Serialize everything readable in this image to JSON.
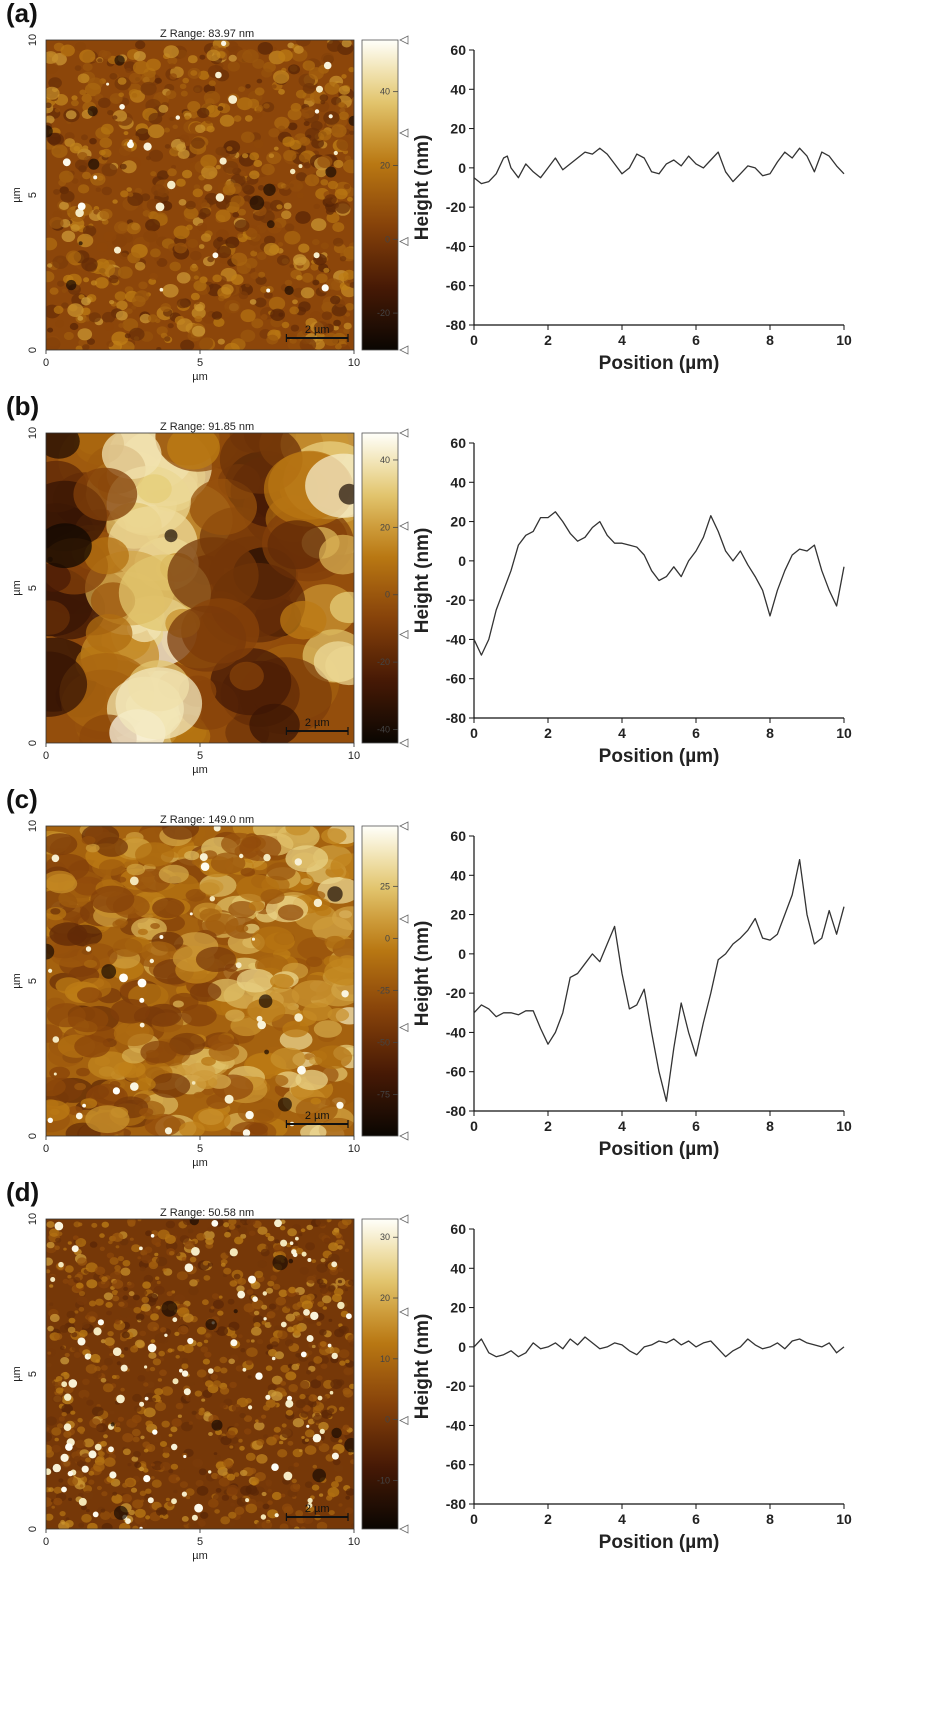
{
  "panels": [
    {
      "label": "(a)",
      "afm": {
        "z_range": "Z Range:  83.97 nm",
        "axis_unit": "µm",
        "x_ticks": [
          "0",
          "5",
          "10"
        ],
        "y_ticks": [
          "0",
          "5",
          "10"
        ],
        "scale_bar": "2 µm",
        "colorbar_ticks": [
          "40",
          "20",
          "0",
          "-20"
        ],
        "colorbar_values": [
          40,
          20,
          0,
          -20
        ],
        "colorbar_range": [
          -30,
          54
        ],
        "texture": "fine-grain"
      },
      "chart_data": {
        "type": "line",
        "xlabel": "Position (µm)",
        "ylabel": "Height (nm)",
        "xlim": [
          0,
          10
        ],
        "ylim": [
          -80,
          60
        ],
        "x_ticks": [
          0,
          2,
          4,
          6,
          8,
          10
        ],
        "y_ticks": [
          -80,
          -60,
          -40,
          -20,
          0,
          20,
          40,
          60
        ],
        "series": [
          {
            "x": [
              0,
              0.2,
              0.4,
              0.6,
              0.8,
              0.9,
              1.0,
              1.2,
              1.4,
              1.6,
              1.8,
              2.0,
              2.2,
              2.4,
              2.6,
              2.8,
              3.0,
              3.2,
              3.4,
              3.6,
              3.8,
              4.0,
              4.2,
              4.4,
              4.6,
              4.8,
              5.0,
              5.2,
              5.4,
              5.6,
              5.8,
              6.0,
              6.2,
              6.4,
              6.6,
              6.8,
              7.0,
              7.2,
              7.4,
              7.6,
              7.8,
              8.0,
              8.2,
              8.4,
              8.6,
              8.8,
              9.0,
              9.2,
              9.4,
              9.6,
              9.8,
              10.0
            ],
            "y": [
              -5,
              -8,
              -7,
              -3,
              5,
              6,
              0,
              -5,
              2,
              -2,
              -5,
              0,
              5,
              -1,
              2,
              5,
              8,
              7,
              10,
              7,
              2,
              -3,
              0,
              7,
              5,
              -2,
              -3,
              2,
              4,
              1,
              6,
              2,
              0,
              4,
              8,
              -2,
              -7,
              -3,
              1,
              0,
              -4,
              -3,
              3,
              8,
              5,
              10,
              6,
              -2,
              8,
              6,
              1,
              -3
            ]
          }
        ]
      }
    },
    {
      "label": "(b)",
      "afm": {
        "z_range": "Z Range:  91.85 nm",
        "axis_unit": "µm",
        "x_ticks": [
          "0",
          "5",
          "10"
        ],
        "y_ticks": [
          "0",
          "5",
          "10"
        ],
        "scale_bar": "2 µm",
        "colorbar_ticks": [
          "40",
          "20",
          "0",
          "-20",
          "-40"
        ],
        "colorbar_values": [
          40,
          20,
          0,
          -20,
          -40
        ],
        "colorbar_range": [
          -44,
          48
        ],
        "texture": "coarse-ridge"
      },
      "chart_data": {
        "type": "line",
        "xlabel": "Position (µm)",
        "ylabel": "Height (nm)",
        "xlim": [
          0,
          10
        ],
        "ylim": [
          -80,
          60
        ],
        "x_ticks": [
          0,
          2,
          4,
          6,
          8,
          10
        ],
        "y_ticks": [
          -80,
          -60,
          -40,
          -20,
          0,
          20,
          40,
          60
        ],
        "series": [
          {
            "x": [
              0,
              0.2,
              0.4,
              0.6,
              0.8,
              1.0,
              1.2,
              1.4,
              1.6,
              1.8,
              2.0,
              2.2,
              2.4,
              2.6,
              2.8,
              3.0,
              3.2,
              3.4,
              3.6,
              3.8,
              4.0,
              4.2,
              4.4,
              4.6,
              4.8,
              5.0,
              5.2,
              5.4,
              5.6,
              5.8,
              6.0,
              6.2,
              6.4,
              6.6,
              6.8,
              7.0,
              7.2,
              7.4,
              7.6,
              7.8,
              8.0,
              8.2,
              8.4,
              8.6,
              8.8,
              9.0,
              9.2,
              9.4,
              9.6,
              9.8,
              10.0
            ],
            "y": [
              -40,
              -48,
              -40,
              -25,
              -15,
              -5,
              8,
              13,
              15,
              22,
              22,
              25,
              20,
              14,
              10,
              12,
              17,
              20,
              13,
              9,
              9,
              8,
              7,
              3,
              -5,
              -10,
              -8,
              -3,
              -8,
              0,
              5,
              12,
              23,
              15,
              5,
              0,
              5,
              -2,
              -8,
              -15,
              -28,
              -15,
              -5,
              3,
              6,
              5,
              8,
              -5,
              -15,
              -23,
              -3
            ]
          }
        ]
      }
    },
    {
      "label": "(c)",
      "afm": {
        "z_range": "Z Range:  149.0 nm",
        "axis_unit": "µm",
        "x_ticks": [
          "0",
          "5",
          "10"
        ],
        "y_ticks": [
          "0",
          "5",
          "10"
        ],
        "scale_bar": "2 µm",
        "colorbar_ticks": [
          "25",
          "0",
          "-25",
          "-50",
          "-75"
        ],
        "colorbar_values": [
          25,
          0,
          -25,
          -50,
          -75
        ],
        "colorbar_range": [
          -95,
          54
        ],
        "texture": "mottled"
      },
      "chart_data": {
        "type": "line",
        "xlabel": "Position (µm)",
        "ylabel": "Height (nm)",
        "xlim": [
          0,
          10
        ],
        "ylim": [
          -80,
          60
        ],
        "x_ticks": [
          0,
          2,
          4,
          6,
          8,
          10
        ],
        "y_ticks": [
          -80,
          -60,
          -40,
          -20,
          0,
          20,
          40,
          60
        ],
        "series": [
          {
            "x": [
              0,
              0.2,
              0.4,
              0.6,
              0.8,
              1.0,
              1.2,
              1.4,
              1.6,
              1.8,
              2.0,
              2.2,
              2.4,
              2.6,
              2.8,
              3.0,
              3.2,
              3.4,
              3.6,
              3.8,
              4.0,
              4.2,
              4.4,
              4.6,
              4.8,
              5.0,
              5.2,
              5.4,
              5.6,
              5.8,
              6.0,
              6.2,
              6.4,
              6.6,
              6.8,
              7.0,
              7.2,
              7.4,
              7.6,
              7.8,
              8.0,
              8.2,
              8.4,
              8.6,
              8.8,
              9.0,
              9.2,
              9.4,
              9.6,
              9.8,
              10.0
            ],
            "y": [
              -30,
              -26,
              -28,
              -32,
              -30,
              -30,
              -31,
              -29,
              -29,
              -38,
              -46,
              -40,
              -30,
              -12,
              -10,
              -5,
              0,
              -4,
              5,
              14,
              -10,
              -28,
              -26,
              -18,
              -40,
              -60,
              -75,
              -48,
              -25,
              -40,
              -52,
              -35,
              -20,
              -3,
              0,
              5,
              8,
              12,
              18,
              8,
              7,
              10,
              20,
              30,
              48,
              20,
              5,
              8,
              22,
              10,
              24
            ]
          }
        ]
      }
    },
    {
      "label": "(d)",
      "afm": {
        "z_range": "Z Range:  50.58 nm",
        "axis_unit": "µm",
        "x_ticks": [
          "0",
          "5",
          "10"
        ],
        "y_ticks": [
          "0",
          "5",
          "10"
        ],
        "scale_bar": "2 µm",
        "colorbar_ticks": [
          "30",
          "20",
          "10",
          "0",
          "-10"
        ],
        "colorbar_values": [
          30,
          20,
          10,
          0,
          -10
        ],
        "colorbar_range": [
          -18,
          33
        ],
        "texture": "dotted-grain"
      },
      "chart_data": {
        "type": "line",
        "xlabel": "Position (µm)",
        "ylabel": "Height (nm)",
        "xlim": [
          0,
          10
        ],
        "ylim": [
          -80,
          60
        ],
        "x_ticks": [
          0,
          2,
          4,
          6,
          8,
          10
        ],
        "y_ticks": [
          -80,
          -60,
          -40,
          -20,
          0,
          20,
          40,
          60
        ],
        "series": [
          {
            "x": [
              0,
              0.2,
              0.4,
              0.6,
              0.8,
              1.0,
              1.2,
              1.4,
              1.6,
              1.8,
              2.0,
              2.2,
              2.4,
              2.6,
              2.8,
              3.0,
              3.2,
              3.4,
              3.6,
              3.8,
              4.0,
              4.2,
              4.4,
              4.6,
              4.8,
              5.0,
              5.2,
              5.4,
              5.6,
              5.8,
              6.0,
              6.2,
              6.4,
              6.6,
              6.8,
              7.0,
              7.2,
              7.4,
              7.6,
              7.8,
              8.0,
              8.2,
              8.4,
              8.6,
              8.8,
              9.0,
              9.2,
              9.4,
              9.6,
              9.8,
              10.0
            ],
            "y": [
              0,
              4,
              -3,
              -5,
              -4,
              -2,
              -5,
              -3,
              2,
              -1,
              0,
              2,
              -1,
              4,
              1,
              5,
              2,
              -1,
              0,
              2,
              1,
              -2,
              -4,
              0,
              1,
              3,
              2,
              4,
              1,
              3,
              0,
              2,
              3,
              -1,
              -5,
              -2,
              0,
              4,
              1,
              -1,
              0,
              2,
              -1,
              3,
              4,
              2,
              1,
              0,
              2,
              -3,
              0
            ]
          }
        ]
      }
    }
  ]
}
